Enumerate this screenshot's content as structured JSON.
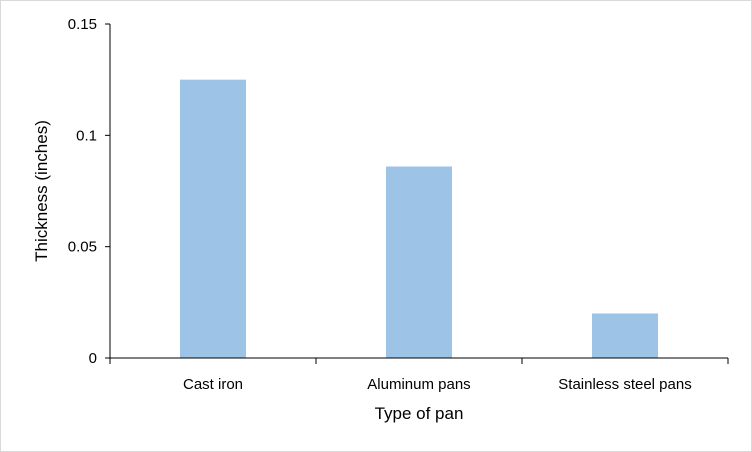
{
  "chart_data": {
    "type": "bar",
    "categories": [
      "Cast iron",
      "Aluminum pans",
      "Stainless steel pans"
    ],
    "values": [
      0.125,
      0.086,
      0.02
    ],
    "xlabel": "Type of pan",
    "ylabel": "Thickness (inches)",
    "ylim": [
      0,
      0.15
    ],
    "yticks": [
      0,
      0.05,
      0.1,
      0.15
    ],
    "ytick_labels": [
      "0",
      "0.05",
      "0.1",
      "0.15"
    ],
    "grid": false,
    "legend": "none",
    "bar_color": "#9dc3e6"
  }
}
